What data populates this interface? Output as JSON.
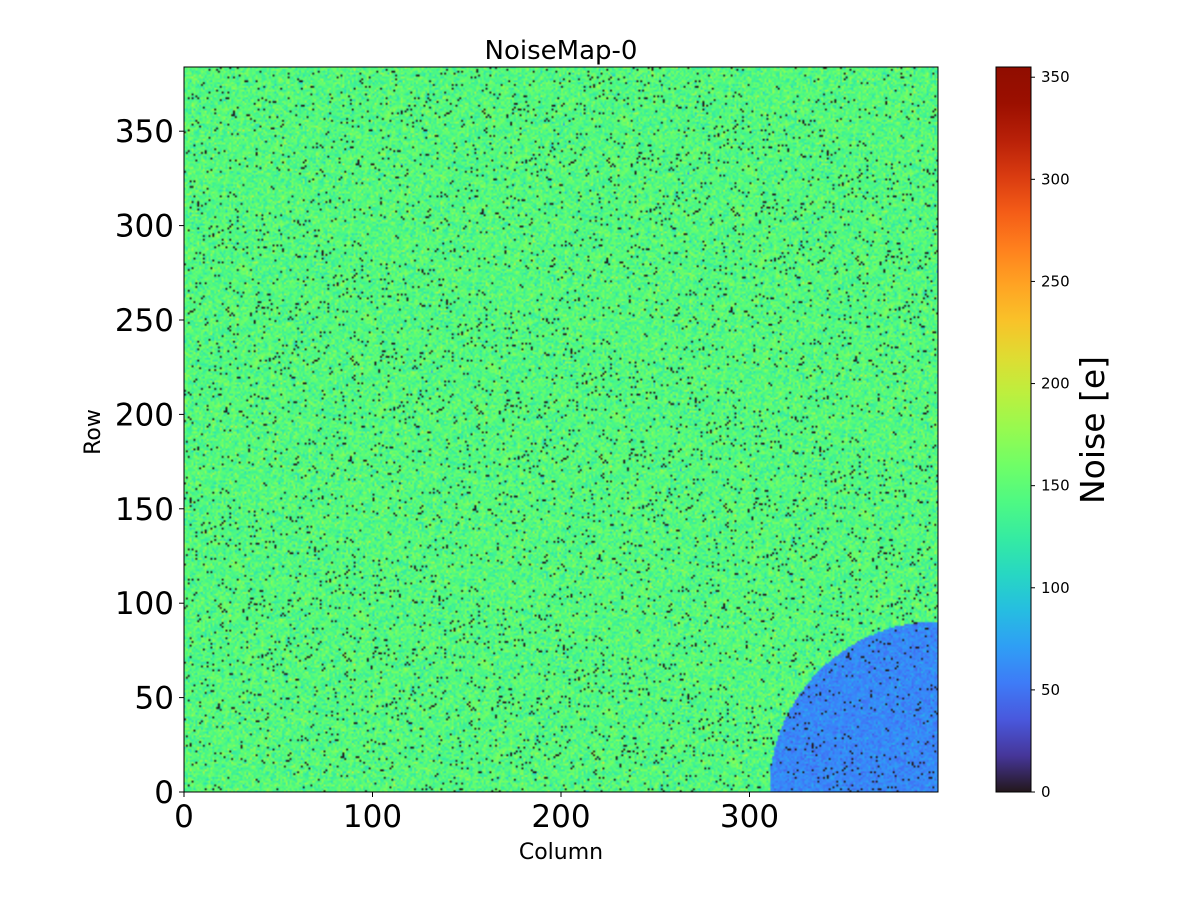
{
  "chart_data": {
    "type": "heatmap",
    "title": "NoiseMap-0",
    "xlabel": "Column",
    "ylabel": "Row",
    "xlim": [
      0,
      400
    ],
    "ylim": [
      0,
      384
    ],
    "xticks": [
      0,
      100,
      200,
      300
    ],
    "yticks": [
      0,
      50,
      100,
      150,
      200,
      250,
      300,
      350
    ],
    "colorbar": {
      "label": "Noise [e]",
      "range": [
        0,
        355
      ],
      "ticks": [
        0,
        50,
        100,
        150,
        200,
        250,
        300,
        350
      ],
      "colormap": "turbo"
    },
    "regions": [
      {
        "description": "bulk of sensor",
        "noise_mean": 145,
        "noise_spread": 15
      },
      {
        "description": "lower-right quarter-disc",
        "center": [
          400,
          0
        ],
        "radius": 90,
        "noise_mean": 60,
        "noise_spread": 8
      },
      {
        "description": "scattered dead pixels",
        "noise_value": 0,
        "fraction": 0.035
      }
    ]
  }
}
